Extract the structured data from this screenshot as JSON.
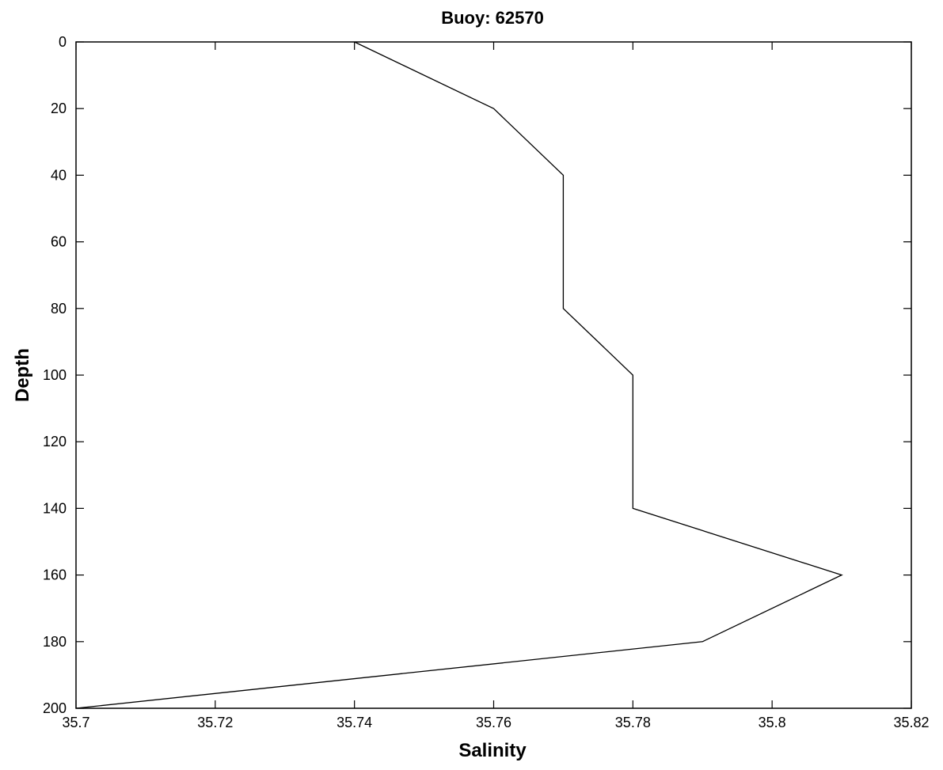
{
  "chart_data": {
    "type": "line",
    "title": "Buoy: 62570",
    "xlabel": "Salinity",
    "ylabel": "Depth",
    "xlim": [
      35.7,
      35.82
    ],
    "ylim": [
      0,
      200
    ],
    "y_inverted": true,
    "grid": false,
    "x_ticks": [
      35.7,
      35.72,
      35.74,
      35.76,
      35.78,
      35.8,
      35.82
    ],
    "y_ticks": [
      0,
      20,
      40,
      60,
      80,
      100,
      120,
      140,
      160,
      180,
      200
    ],
    "series": [
      {
        "x": [
          35.74,
          35.76,
          35.77,
          35.77,
          35.78,
          35.78,
          35.81,
          35.79,
          35.7
        ],
        "y": [
          0,
          20,
          40,
          80,
          100,
          140,
          160,
          180,
          200
        ]
      }
    ],
    "line_color": "#000000"
  }
}
